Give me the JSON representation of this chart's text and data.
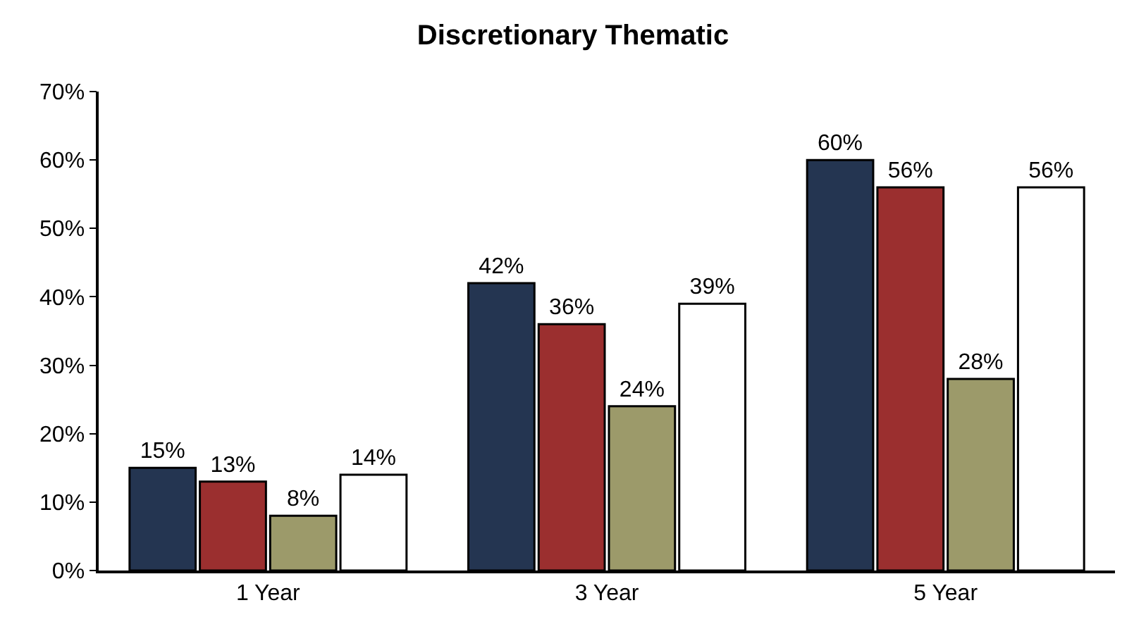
{
  "chart_data": {
    "type": "bar",
    "title": "Discretionary Thematic",
    "categories": [
      "1 Year",
      "3 Year",
      "5 Year"
    ],
    "series": [
      {
        "color": "#243551",
        "values": [
          15,
          42,
          60
        ],
        "value_labels": [
          "15%",
          "42%",
          "60%"
        ]
      },
      {
        "color": "#9b2f2f",
        "values": [
          13,
          36,
          56
        ],
        "value_labels": [
          "13%",
          "36%",
          "56%"
        ]
      },
      {
        "color": "#9c9a6a",
        "values": [
          8,
          24,
          28
        ],
        "value_labels": [
          "8%",
          "24%",
          "28%"
        ]
      },
      {
        "color": "#ffffff",
        "values": [
          14,
          39,
          56
        ],
        "value_labels": [
          "14%",
          "39%",
          "56%"
        ]
      }
    ],
    "ylim": [
      0,
      70
    ],
    "yticks": [
      {
        "value": 0,
        "label": "0%"
      },
      {
        "value": 10,
        "label": "10%"
      },
      {
        "value": 20,
        "label": "20%"
      },
      {
        "value": 30,
        "label": "30%"
      },
      {
        "value": 40,
        "label": "40%"
      },
      {
        "value": 50,
        "label": "50%"
      },
      {
        "value": 60,
        "label": "60%"
      },
      {
        "value": 70,
        "label": "70%"
      }
    ],
    "grid": false
  }
}
